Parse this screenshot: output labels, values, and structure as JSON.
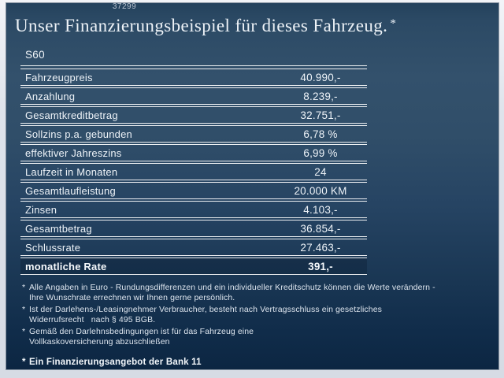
{
  "header": {
    "code": "37299",
    "title": "Unser Finanzierungsbeispiel für dieses Fahrzeug.",
    "asterisk": "*"
  },
  "table": {
    "model": "S60",
    "rows": [
      {
        "label": "Fahrzeugpreis",
        "value": "40.990,-"
      },
      {
        "label": "Anzahlung",
        "value": "8.239,-"
      },
      {
        "label": "Gesamtkreditbetrag",
        "value": "32.751,-"
      },
      {
        "label": "Sollzins p.a. gebunden",
        "value": "6,78 %"
      },
      {
        "label": "effektiver Jahreszins",
        "value": "6,99 %"
      },
      {
        "label": "Laufzeit in Monaten",
        "value": "24"
      },
      {
        "label": "Gesamtlaufleistung",
        "value": "20.000 KM"
      },
      {
        "label": "Zinsen",
        "value": "4.103,-"
      },
      {
        "label": "Gesamtbetrag",
        "value": "36.854,-"
      },
      {
        "label": "Schlussrate",
        "value": "27.463,-"
      },
      {
        "label": "monatliche Rate",
        "value": "391,-"
      }
    ]
  },
  "footnotes": {
    "marker": "*",
    "items": [
      {
        "line1": "Alle Angaben in Euro - Rundungsdifferenzen und ein individueller Kreditschutz können die Werte verändern -",
        "line2": "Ihre Wunschrate errechnen wir Ihnen gerne persönlich."
      },
      {
        "line1": "Ist der Darlehens-/Leasingnehmer Verbraucher, besteht nach Vertragsschluss ein gesetzliches",
        "line2": "Widerrufsrecht   nach § 495 BGB."
      },
      {
        "line1": "Gemäß den Darlehnsbedingungen ist für das Fahrzeug eine",
        "line2": "Vollkaskoversicherung abzuschließen"
      }
    ],
    "offer": "Ein Finanzierungsangebot der Bank 11"
  },
  "colors": {
    "panel_top": "#2c4a65",
    "panel_mid": "#33516c",
    "panel_bottom": "#0c2642",
    "frame": "#dee3eb",
    "rule": "#ffffff",
    "text": "#eef3f8"
  }
}
